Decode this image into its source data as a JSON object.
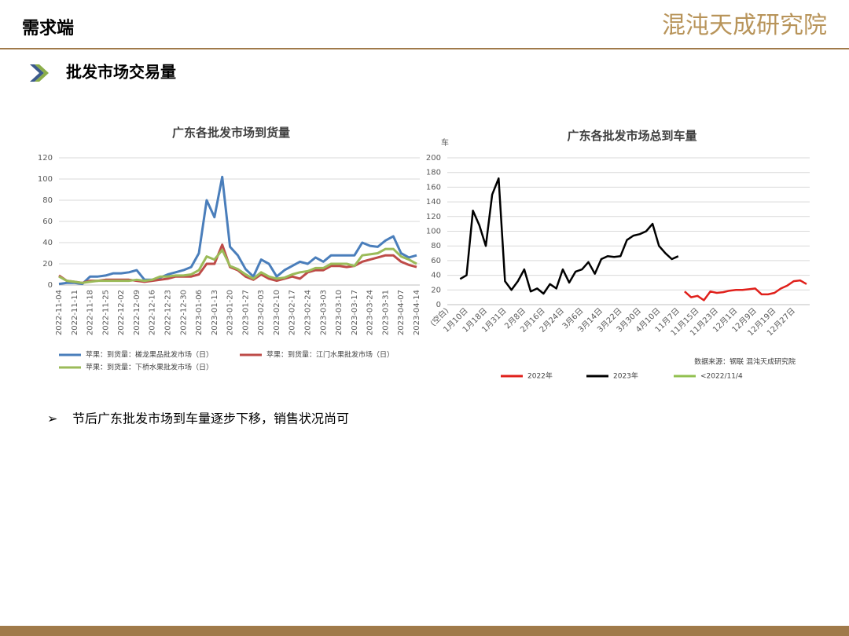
{
  "header": {
    "title": "需求端",
    "logo": "混沌天成研究院"
  },
  "section": {
    "title": "批发市场交易量"
  },
  "bullet": "节后广东批发市场到车量逐步下移，销售状况尚可",
  "chart_data": [
    {
      "type": "line",
      "title": "广东各批发市场到货量",
      "categories": [
        "2022-11-04",
        null,
        "2022-11-11",
        null,
        "2022-11-18",
        null,
        "2022-11-25",
        null,
        "2022-12-02",
        null,
        "2022-12-09",
        null,
        "2022-12-16",
        null,
        "2022-12-23",
        null,
        "2022-12-30",
        null,
        "2023-01-06",
        null,
        "2023-01-13",
        null,
        "2023-01-20",
        null,
        "2023-01-27",
        null,
        "2023-02-03",
        null,
        "2023-02-10",
        null,
        "2023-02-17",
        null,
        "2023-02-24",
        null,
        "2023-03-03",
        null,
        "2023-03-10",
        null,
        "2023-03-17",
        null,
        "2023-03-24",
        null,
        "2023-03-31",
        null,
        "2023-04-07",
        null,
        "2023-04-14"
      ],
      "series": [
        {
          "name": "苹果：到货量：槎龙果品批发市场（日）",
          "color": "#4a7ebb",
          "values": [
            1,
            2,
            2,
            1,
            8,
            8,
            9,
            11,
            11,
            12,
            14,
            5,
            5,
            7,
            10,
            12,
            14,
            17,
            30,
            80,
            64,
            102,
            36,
            28,
            15,
            8,
            24,
            20,
            8,
            14,
            18,
            22,
            20,
            26,
            22,
            28,
            28,
            28,
            28,
            40,
            37,
            36,
            42,
            46,
            30,
            26,
            28
          ]
        },
        {
          "name": "苹果：到货量：江门水果批发市场（日）",
          "color": "#be4b48",
          "values": [
            9,
            4,
            3,
            2,
            4,
            4,
            5,
            5,
            5,
            5,
            4,
            3,
            4,
            5,
            6,
            8,
            8,
            8,
            10,
            20,
            20,
            38,
            17,
            14,
            8,
            5,
            10,
            6,
            4,
            6,
            8,
            6,
            12,
            14,
            14,
            18,
            18,
            17,
            18,
            22,
            24,
            26,
            28,
            28,
            22,
            19,
            17
          ]
        },
        {
          "name": "苹果：到货量：下桥水果批发市场（日）",
          "color": "#9bbb59",
          "values": [
            8,
            4,
            3,
            2,
            3,
            4,
            4,
            4,
            4,
            4,
            5,
            4,
            5,
            8,
            8,
            9,
            9,
            10,
            14,
            27,
            24,
            33,
            18,
            15,
            10,
            6,
            12,
            8,
            6,
            7,
            10,
            12,
            13,
            16,
            16,
            20,
            20,
            20,
            18,
            28,
            29,
            30,
            34,
            34,
            27,
            24,
            20
          ]
        }
      ],
      "ylim": [
        0,
        120
      ],
      "yticks": [
        0,
        20,
        40,
        60,
        80,
        100,
        120
      ],
      "grid": true
    },
    {
      "type": "line",
      "title": "广东各批发市场总到车量",
      "ylabel": "车",
      "source": "数据来源：钢联 混沌天成研究院",
      "categories": [
        "(空白)",
        null,
        null,
        "1月10日",
        null,
        null,
        "1月18日",
        null,
        null,
        "1月31日",
        null,
        null,
        "2月8日",
        null,
        null,
        "2月16日",
        null,
        null,
        "2月24日",
        null,
        null,
        "3月6日",
        null,
        null,
        "3月14日",
        null,
        null,
        "3月22日",
        null,
        null,
        "3月30日",
        null,
        null,
        "4月10日",
        null,
        null,
        "11月7日",
        null,
        null,
        "11月15日",
        null,
        null,
        "11月23日",
        null,
        null,
        "12月1日",
        null,
        null,
        "12月9日",
        null,
        null,
        "12月19日",
        null,
        null,
        "12月27日",
        null,
        null
      ],
      "series": [
        {
          "name": "2022年",
          "color": "#e0201b",
          "values": [
            null,
            null,
            null,
            null,
            null,
            null,
            null,
            null,
            null,
            null,
            null,
            null,
            null,
            null,
            null,
            null,
            null,
            null,
            null,
            null,
            null,
            null,
            null,
            null,
            null,
            null,
            null,
            null,
            null,
            null,
            null,
            null,
            null,
            null,
            null,
            null,
            null,
            18,
            10,
            12,
            6,
            18,
            16,
            17,
            19,
            20,
            20,
            21,
            22,
            14,
            14,
            16,
            22,
            26,
            32,
            33,
            28
          ]
        },
        {
          "name": "2023年",
          "color": "#000000",
          "values": [
            null,
            null,
            35,
            40,
            128,
            108,
            80,
            150,
            172,
            32,
            20,
            32,
            48,
            18,
            22,
            15,
            28,
            22,
            48,
            30,
            45,
            48,
            58,
            42,
            62,
            66,
            65,
            66,
            88,
            94,
            96,
            100,
            110,
            80,
            70,
            62,
            66,
            null,
            null,
            null,
            null,
            null,
            null,
            null,
            null,
            null,
            null,
            null,
            null,
            null,
            null,
            null,
            null,
            null,
            null,
            null,
            null
          ]
        },
        {
          "name": "<2022/11/4",
          "color": "#92c050",
          "values": [
            null,
            null,
            null,
            null,
            null,
            null,
            null,
            null,
            null,
            null,
            null,
            null,
            null,
            null,
            null,
            null,
            null,
            null,
            null,
            null,
            null,
            null,
            null,
            null,
            null,
            null,
            null,
            null,
            null,
            null,
            null,
            null,
            null,
            null,
            null,
            null,
            null,
            null,
            null,
            null,
            null,
            null,
            null,
            null,
            null,
            null,
            null,
            null,
            null,
            null,
            null,
            null,
            null,
            null,
            null,
            null,
            null
          ]
        }
      ],
      "ylim": [
        0,
        200
      ],
      "yticks": [
        0,
        20,
        40,
        60,
        80,
        100,
        120,
        140,
        160,
        180,
        200
      ],
      "grid": true
    }
  ]
}
